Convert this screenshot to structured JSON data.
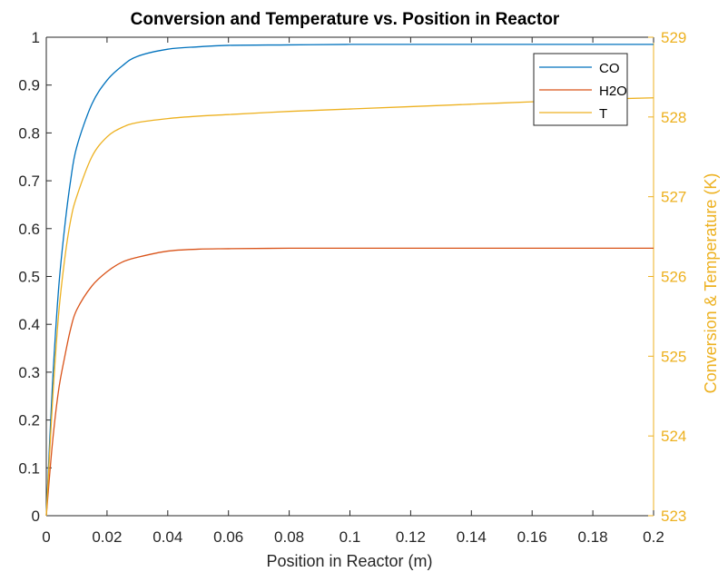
{
  "chart_data": {
    "type": "line",
    "title": "Conversion and Temperature vs. Position in Reactor",
    "xlabel": "Position in Reactor (m)",
    "ylabel": "",
    "y2label": "Conversion & Temperature (K)",
    "xlim": [
      0,
      0.2
    ],
    "ylim": [
      0,
      1
    ],
    "y2lim": [
      523,
      529
    ],
    "xticks": [
      "0",
      "0.02",
      "0.04",
      "0.06",
      "0.08",
      "0.1",
      "0.12",
      "0.14",
      "0.16",
      "0.18",
      "0.2"
    ],
    "yticks": [
      "0",
      "0.1",
      "0.2",
      "0.3",
      "0.4",
      "0.5",
      "0.6",
      "0.7",
      "0.8",
      "0.9",
      "1"
    ],
    "y2ticks": [
      "523",
      "524",
      "525",
      "526",
      "527",
      "528",
      "529"
    ],
    "grid": false,
    "legend_position": "top-right",
    "series": [
      {
        "name": "CO",
        "axis": "left",
        "color": "#0072BD",
        "x": [
          0,
          0.002,
          0.004,
          0.006,
          0.008,
          0.01,
          0.015,
          0.02,
          0.025,
          0.03,
          0.04,
          0.05,
          0.06,
          0.08,
          0.1,
          0.12,
          0.14,
          0.16,
          0.18,
          0.2
        ],
        "values": [
          0,
          0.27,
          0.47,
          0.6,
          0.7,
          0.77,
          0.86,
          0.91,
          0.94,
          0.96,
          0.975,
          0.98,
          0.983,
          0.984,
          0.985,
          0.985,
          0.985,
          0.985,
          0.985,
          0.985
        ]
      },
      {
        "name": "H2O",
        "axis": "left",
        "color": "#D95319",
        "x": [
          0,
          0.002,
          0.004,
          0.006,
          0.008,
          0.01,
          0.015,
          0.02,
          0.025,
          0.03,
          0.04,
          0.05,
          0.06,
          0.08,
          0.1,
          0.12,
          0.14,
          0.16,
          0.18,
          0.2
        ],
        "values": [
          0,
          0.15,
          0.26,
          0.33,
          0.39,
          0.43,
          0.48,
          0.51,
          0.53,
          0.54,
          0.553,
          0.557,
          0.558,
          0.559,
          0.559,
          0.559,
          0.559,
          0.559,
          0.559,
          0.559
        ]
      },
      {
        "name": "T",
        "axis": "right",
        "color": "#EDB120",
        "x": [
          0,
          0.002,
          0.004,
          0.006,
          0.008,
          0.01,
          0.015,
          0.02,
          0.025,
          0.03,
          0.04,
          0.05,
          0.06,
          0.08,
          0.1,
          0.12,
          0.14,
          0.16,
          0.18,
          0.2
        ],
        "values": [
          523.0,
          524.4,
          525.5,
          526.2,
          526.7,
          527.0,
          527.5,
          527.75,
          527.87,
          527.93,
          527.98,
          528.01,
          528.03,
          528.07,
          528.1,
          528.13,
          528.16,
          528.19,
          528.22,
          528.24
        ]
      }
    ]
  }
}
